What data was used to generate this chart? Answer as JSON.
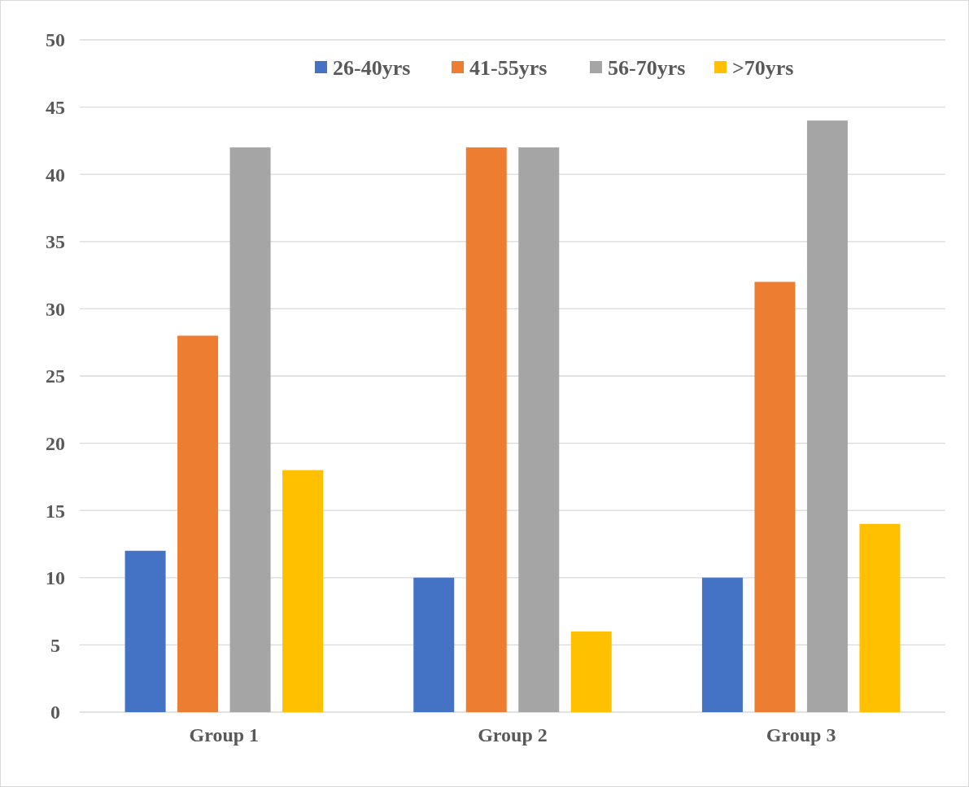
{
  "chart_data": {
    "type": "bar",
    "categories": [
      "Group 1",
      "Group 2",
      "Group 3"
    ],
    "series": [
      {
        "name": "26-40yrs",
        "color": "#4472c4",
        "values": [
          12,
          10,
          10
        ]
      },
      {
        "name": "41-55yrs",
        "color": "#ed7d31",
        "values": [
          28,
          42,
          32
        ]
      },
      {
        "name": "56-70yrs",
        "color": "#a5a5a5",
        "values": [
          42,
          42,
          44
        ]
      },
      {
        "name": ">70yrs",
        "color": "#ffc000",
        "values": [
          18,
          6,
          14
        ]
      }
    ],
    "ylim": [
      0,
      50
    ],
    "yticks": [
      0,
      5,
      10,
      15,
      20,
      25,
      30,
      35,
      40,
      45,
      50
    ],
    "grid": "y",
    "legend": "top"
  }
}
